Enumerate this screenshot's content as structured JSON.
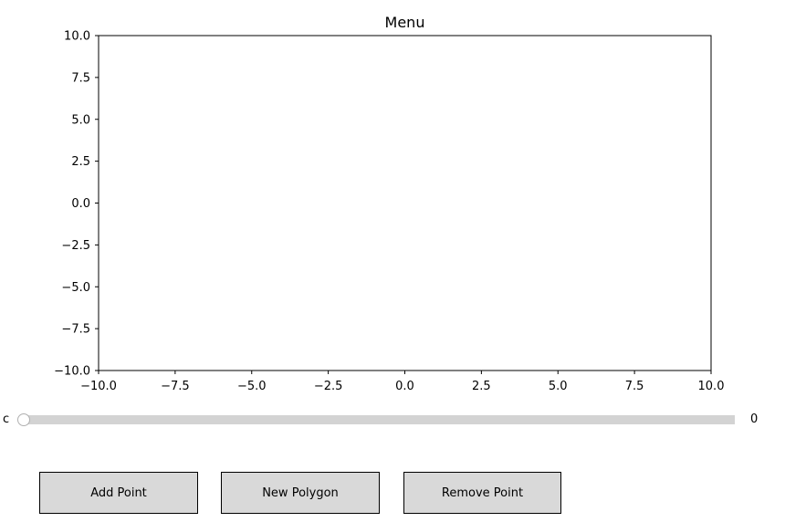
{
  "title": "Menu",
  "axes": {
    "x_ticks": [
      "−10.0",
      "−7.5",
      "−5.0",
      "−2.5",
      "0.0",
      "2.5",
      "5.0",
      "7.5",
      "10.0"
    ],
    "y_ticks": [
      "10.0",
      "7.5",
      "5.0",
      "2.5",
      "0.0",
      "−2.5",
      "−5.0",
      "−7.5",
      "−10.0"
    ],
    "xlim": [
      -10,
      10
    ],
    "ylim": [
      -10,
      10
    ]
  },
  "slider": {
    "label": "c",
    "value": "0",
    "min": 0,
    "max": 1,
    "current": 0
  },
  "buttons": {
    "add_point": "Add Point",
    "new_polygon": "New Polygon",
    "remove_point": "Remove Point"
  },
  "colors": {
    "button_bg": "#d9d9d9",
    "slider_track": "#d3d3d3"
  }
}
